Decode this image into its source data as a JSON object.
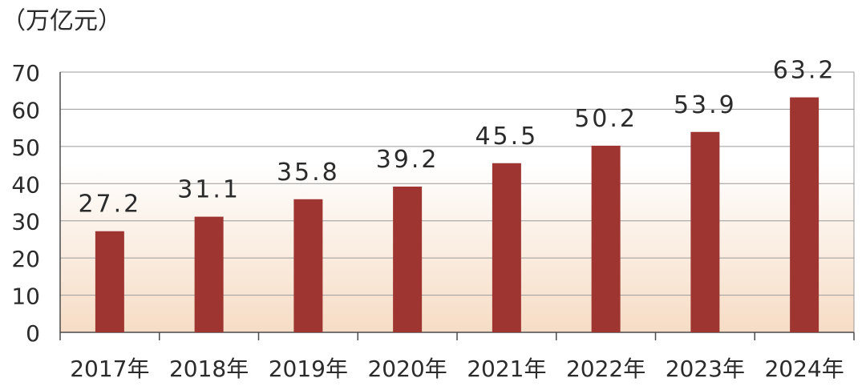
{
  "chart_data": {
    "type": "bar",
    "ylabel": "（万亿元）",
    "categories": [
      "2017年",
      "2018年",
      "2019年",
      "2020年",
      "2021年",
      "2022年",
      "2023年",
      "2024年"
    ],
    "values": [
      27.2,
      31.1,
      35.8,
      39.2,
      45.5,
      50.2,
      53.9,
      63.2
    ],
    "data_labels": [
      "27.2",
      "31.1",
      "35.8",
      "39.2",
      "45.5",
      "50.2",
      "53.9",
      "63.2"
    ],
    "yticks": [
      "0",
      "10",
      "20",
      "30",
      "40",
      "50",
      "60",
      "70"
    ],
    "ylim": [
      0,
      70
    ],
    "grid": true,
    "colors": {
      "bar": "#9e3531",
      "grid": "#9a9a9a",
      "axis": "#4a4a4a",
      "background_top": "#ffffff",
      "background_bottom": "#f6dcc5",
      "text": "#2b2b2b"
    }
  }
}
